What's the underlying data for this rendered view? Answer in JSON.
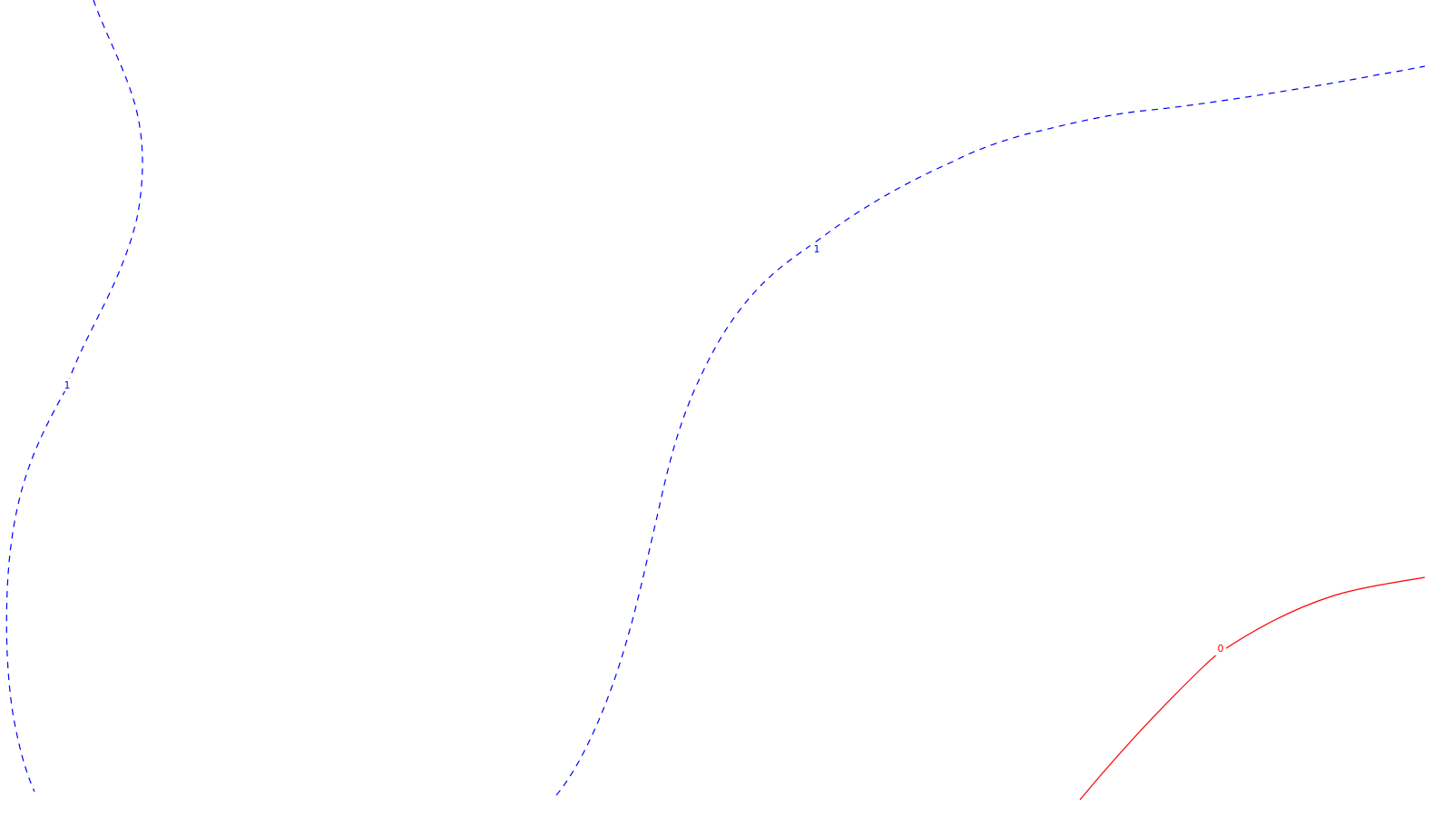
{
  "contours": [
    {
      "id": "contour-1-left",
      "level": 1,
      "label": "1",
      "color": "#0000ff",
      "style": "dashed"
    },
    {
      "id": "contour-1-center",
      "level": 1,
      "label": "1",
      "color": "#0000ff",
      "style": "dashed"
    },
    {
      "id": "contour-0",
      "level": 0,
      "label": "0",
      "color": "#ff0000",
      "style": "solid"
    }
  ]
}
